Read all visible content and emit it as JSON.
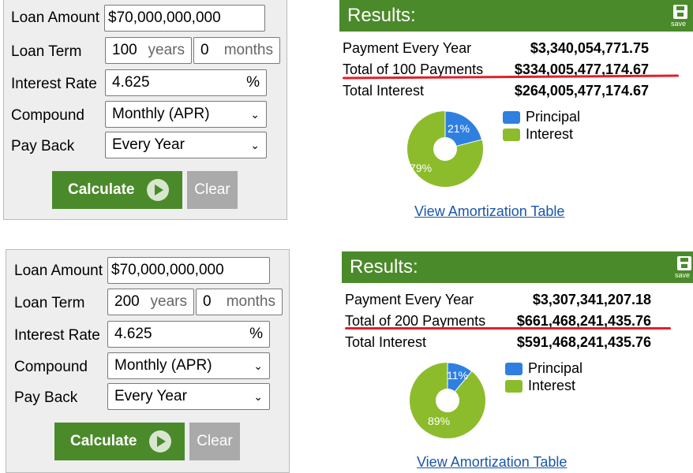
{
  "labels": {
    "loan_amount": "Loan Amount",
    "loan_term": "Loan Term",
    "interest_rate": "Interest Rate",
    "compound": "Compound",
    "pay_back": "Pay Back",
    "years_unit": "years",
    "months_unit": "months",
    "percent": "%",
    "calculate": "Calculate",
    "clear": "Clear",
    "results": "Results:",
    "save": "save",
    "payment_every_year": "Payment Every Year",
    "total_interest": "Total Interest",
    "principal": "Principal",
    "interest": "Interest",
    "amortization_link": "View Amortization Table"
  },
  "colors": {
    "green": "#4b8a2a",
    "principal": "#2f7fe0",
    "interest": "#8cbc2c",
    "underline": "#e0202a"
  },
  "calc1": {
    "form": {
      "loan_amount": "$70,000,000,000",
      "term_years": "100",
      "term_months": "0",
      "interest_rate": "4.625",
      "compound": "Monthly (APR)",
      "pay_back": "Every Year"
    },
    "results": {
      "payment": "$3,340,054,771.75",
      "total_label": "Total of 100 Payments",
      "total_value": "$334,005,477,174.67",
      "total_interest": "$264,005,477,174.67"
    },
    "pie": {
      "principal_pct": 21,
      "interest_pct": 79,
      "principal_label": "21%",
      "interest_label": "79%"
    }
  },
  "calc2": {
    "form": {
      "loan_amount": "$70,000,000,000",
      "term_years": "200",
      "term_months": "0",
      "interest_rate": "4.625",
      "compound": "Monthly (APR)",
      "pay_back": "Every Year"
    },
    "results": {
      "payment": "$3,307,341,207.18",
      "total_label": "Total of 200 Payments",
      "total_value": "$661,468,241,435.76",
      "total_interest": "$591,468,241,435.76"
    },
    "pie": {
      "principal_pct": 11,
      "interest_pct": 89,
      "principal_label": "11%",
      "interest_label": "89%"
    }
  }
}
